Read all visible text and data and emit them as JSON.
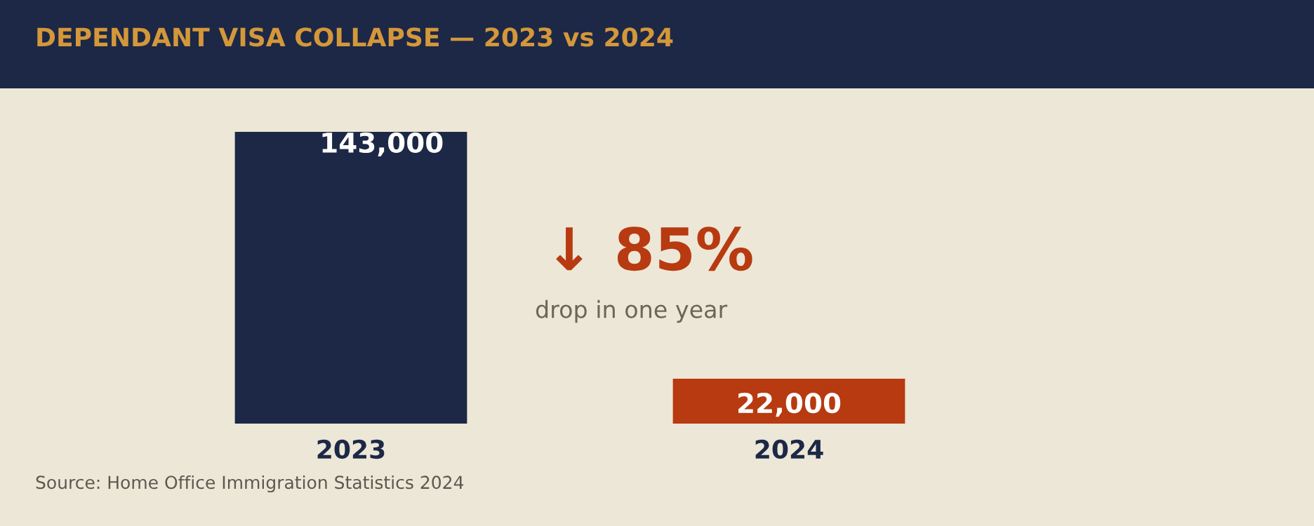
{
  "chart_data": {
    "type": "bar",
    "title": "DEPENDANT VISA COLLAPSE — 2023 vs 2024",
    "categories": [
      "2023",
      "2024"
    ],
    "values": [
      143000,
      22000
    ],
    "value_labels": [
      "143,000",
      "22,000"
    ],
    "colors": [
      "#1c2846",
      "#b83a10"
    ],
    "annotations": [
      "↓ 85%",
      "drop in one year",
      "Source: Home Office Immigration Statistics 2024"
    ],
    "grid": false,
    "legend": false
  }
}
